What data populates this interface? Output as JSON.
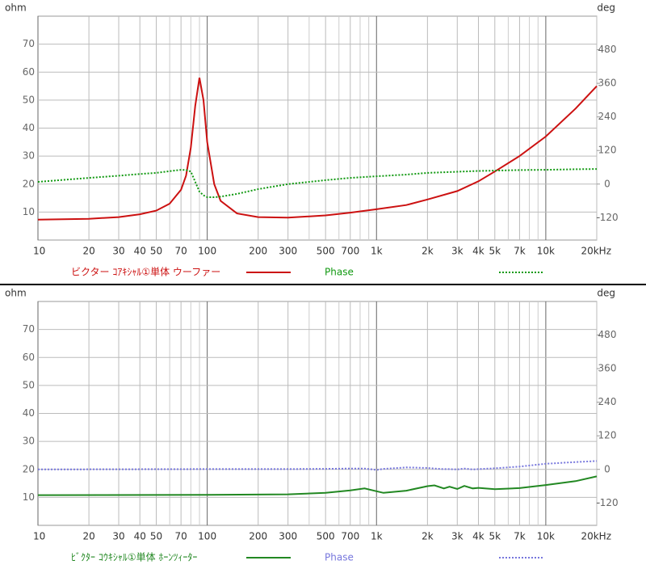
{
  "chart_data": [
    {
      "type": "line",
      "x_scale": "log",
      "y_label": "ohm",
      "y2_label": "deg",
      "x": [
        10,
        20,
        30,
        40,
        50,
        60,
        70,
        75,
        80,
        85,
        90,
        95,
        100,
        110,
        120,
        150,
        200,
        300,
        500,
        700,
        1000,
        1500,
        2000,
        3000,
        4000,
        5000,
        7000,
        10000,
        15000,
        20000
      ],
      "series": [
        {
          "name": "ビクター ｺｱｷｼｬﾙ①単体 ウーファー",
          "color": "#cc1111",
          "linestyle": "solid",
          "values": [
            7.3,
            7.6,
            8.2,
            9.2,
            10.5,
            13,
            18,
            23,
            33,
            48,
            58,
            50,
            35,
            20,
            14,
            9.5,
            8.2,
            8,
            8.8,
            9.8,
            11,
            12.5,
            14.5,
            17.5,
            21,
            24.5,
            30,
            37,
            47,
            55
          ]
        },
        {
          "name": "Phase",
          "color": "#119911",
          "linestyle": "dotted",
          "axis": "y2",
          "values": [
            8,
            22,
            30,
            36,
            40,
            46,
            51,
            50,
            45,
            8,
            -27,
            -40,
            -47,
            -47,
            -45,
            -35,
            -18,
            0,
            14,
            22,
            28,
            34,
            40,
            44,
            47,
            48,
            50,
            51,
            53,
            54
          ]
        }
      ],
      "xlim": [
        10,
        20000
      ],
      "xticks": [
        10,
        20,
        30,
        40,
        50,
        70,
        100,
        200,
        300,
        500,
        700,
        {
          "value": 1000,
          "label": "1k"
        },
        {
          "value": 2000,
          "label": "2k"
        },
        {
          "value": 3000,
          "label": "3k"
        },
        {
          "value": 4000,
          "label": "4k"
        },
        {
          "value": 5000,
          "label": "5k"
        },
        {
          "value": 7000,
          "label": "7k"
        },
        {
          "value": 10000,
          "label": "10k"
        },
        {
          "value": 20000,
          "label": "20kHz"
        }
      ],
      "xgrid": [
        60,
        80,
        90,
        400,
        600,
        800,
        900,
        6000,
        8000,
        9000
      ],
      "ylim": [
        0,
        80
      ],
      "yticks": [
        10,
        20,
        30,
        40,
        50,
        60,
        70
      ],
      "y2lim": [
        -200,
        600
      ],
      "y2ticks": [
        -120,
        0,
        120,
        240,
        360,
        480
      ],
      "grid": true
    },
    {
      "type": "line",
      "x_scale": "log",
      "y_label": "ohm",
      "y2_label": "deg",
      "x": [
        10,
        100,
        300,
        500,
        700,
        850,
        1000,
        1100,
        1500,
        2000,
        2200,
        2500,
        2700,
        3000,
        3300,
        3700,
        4000,
        5000,
        7000,
        10000,
        15000,
        20000
      ],
      "series": [
        {
          "name": "ﾋﾞｸﾀｰ  ｺｳｷｼｬﾙ①単体 ﾎｰﾝﾂｨｰﾀｰ",
          "color": "#228822",
          "linestyle": "solid",
          "values": [
            10.8,
            10.9,
            11.1,
            11.6,
            12.5,
            13.2,
            12.2,
            11.6,
            12.4,
            14,
            14.3,
            13.2,
            13.8,
            13,
            14.1,
            13.2,
            13.4,
            12.9,
            13.3,
            14.4,
            15.8,
            17.5
          ]
        },
        {
          "name": "Phase",
          "color": "#7777dd",
          "linestyle": "dotted",
          "axis": "y2",
          "values": [
            0,
            1,
            1,
            2,
            3,
            3,
            -2,
            2,
            7,
            5,
            3,
            1,
            1,
            0,
            3,
            0,
            1,
            4,
            10,
            20,
            26,
            30
          ]
        }
      ],
      "xlim": [
        10,
        20000
      ],
      "xticks": [
        10,
        20,
        30,
        40,
        50,
        70,
        100,
        200,
        300,
        500,
        700,
        {
          "value": 1000,
          "label": "1k"
        },
        {
          "value": 2000,
          "label": "2k"
        },
        {
          "value": 3000,
          "label": "3k"
        },
        {
          "value": 4000,
          "label": "4k"
        },
        {
          "value": 5000,
          "label": "5k"
        },
        {
          "value": 7000,
          "label": "7k"
        },
        {
          "value": 10000,
          "label": "10k"
        },
        {
          "value": 20000,
          "label": "20kHz"
        }
      ],
      "xgrid": [
        60,
        80,
        90,
        400,
        600,
        800,
        900,
        6000,
        8000,
        9000
      ],
      "ylim": [
        0,
        80
      ],
      "yticks": [
        10,
        20,
        30,
        40,
        50,
        60,
        70
      ],
      "y2lim": [
        -200,
        600
      ],
      "y2ticks": [
        -120,
        0,
        120,
        240,
        360,
        480
      ],
      "grid": true
    }
  ]
}
